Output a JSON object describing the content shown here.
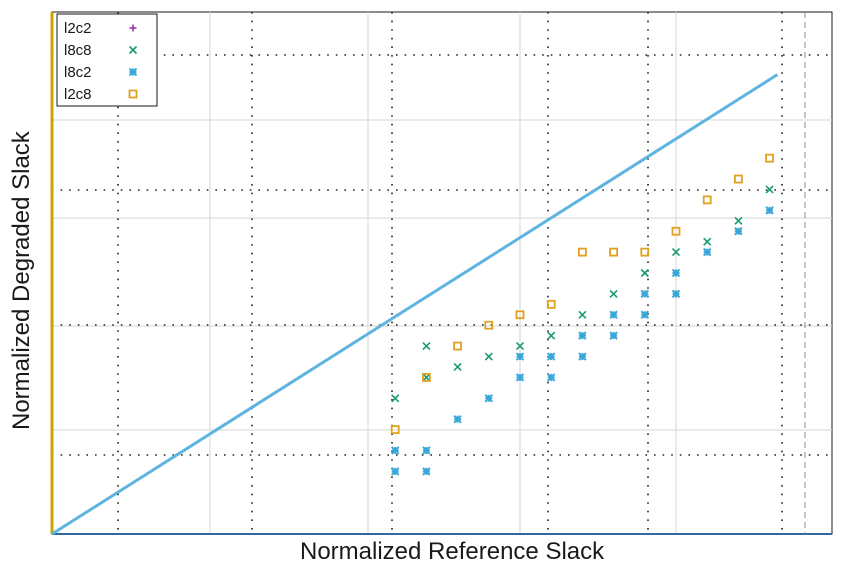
{
  "chart_data": {
    "type": "scatter",
    "title": "",
    "xlabel": "Normalized Reference Slack",
    "ylabel": "Normalized Degraded Slack",
    "xlim": [
      0,
      1
    ],
    "ylim": [
      0,
      1
    ],
    "grid": true,
    "legend_position": "top-left",
    "series": [
      {
        "name": "l2c2",
        "marker": "plus",
        "color": "#9b2fae",
        "points": []
      },
      {
        "name": "l8c8",
        "marker": "x",
        "color": "#1a9a72",
        "points": [
          [
            0.48,
            0.36
          ],
          [
            0.44,
            0.26
          ],
          [
            0.48,
            0.3
          ],
          [
            0.52,
            0.32
          ],
          [
            0.56,
            0.34
          ],
          [
            0.6,
            0.36
          ],
          [
            0.64,
            0.38
          ],
          [
            0.68,
            0.42
          ],
          [
            0.72,
            0.46
          ],
          [
            0.76,
            0.5
          ],
          [
            0.8,
            0.54
          ],
          [
            0.84,
            0.56
          ],
          [
            0.88,
            0.6
          ],
          [
            0.92,
            0.66
          ]
        ]
      },
      {
        "name": "l8c2",
        "marker": "asterisk",
        "color": "#3aa7d9",
        "points": [
          [
            0.44,
            0.12
          ],
          [
            0.48,
            0.12
          ],
          [
            0.44,
            0.16
          ],
          [
            0.48,
            0.16
          ],
          [
            0.52,
            0.22
          ],
          [
            0.56,
            0.26
          ],
          [
            0.6,
            0.3
          ],
          [
            0.6,
            0.34
          ],
          [
            0.64,
            0.3
          ],
          [
            0.64,
            0.34
          ],
          [
            0.68,
            0.38
          ],
          [
            0.68,
            0.34
          ],
          [
            0.72,
            0.38
          ],
          [
            0.72,
            0.42
          ],
          [
            0.76,
            0.42
          ],
          [
            0.76,
            0.46
          ],
          [
            0.8,
            0.46
          ],
          [
            0.8,
            0.5
          ],
          [
            0.84,
            0.54
          ],
          [
            0.88,
            0.58
          ],
          [
            0.92,
            0.62
          ]
        ]
      },
      {
        "name": "l2c8",
        "marker": "square",
        "color": "#e0a020",
        "points": [
          [
            0.44,
            0.2
          ],
          [
            0.48,
            0.3
          ],
          [
            0.52,
            0.36
          ],
          [
            0.56,
            0.4
          ],
          [
            0.6,
            0.42
          ],
          [
            0.64,
            0.44
          ],
          [
            0.68,
            0.54
          ],
          [
            0.72,
            0.54
          ],
          [
            0.76,
            0.54
          ],
          [
            0.8,
            0.58
          ],
          [
            0.84,
            0.64
          ],
          [
            0.88,
            0.68
          ],
          [
            0.92,
            0.72
          ]
        ]
      }
    ],
    "reference_line": {
      "x": [
        0.0,
        0.93
      ],
      "y": [
        0.0,
        0.88
      ],
      "color": "#5fb3e0"
    }
  }
}
